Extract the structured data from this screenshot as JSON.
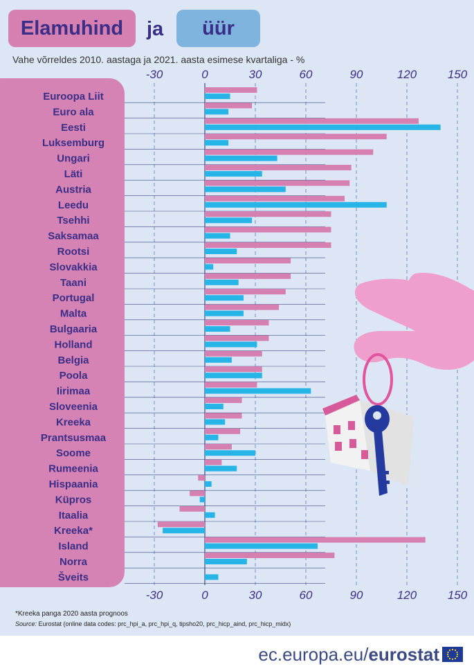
{
  "header": {
    "title_left": "Elamuhind",
    "title_and": "ja",
    "title_right": "üür",
    "subtitle": "Vahe võrreldes 2010. aastaga ja 2021. aasta esimese kvartaliga - %"
  },
  "footer": {
    "footnote": "*Kreeka panga 2020 aasta prognoos",
    "source_label": "Source:",
    "source_text": " Eurostat (online data codes: prc_hpi_a, prc_hpi_q, tipsho20, prc_hicp_aind, prc_hicp_midx)",
    "brand_prefix": "ec.europa.eu/",
    "brand_name": "eurostat"
  },
  "colors": {
    "house_prices": "#d67fb1",
    "rents": "#27b4e6",
    "panel_bg": "#dde6f4",
    "title_text": "#3a2e86",
    "label_panel": "#d582b4"
  },
  "icons": [
    "hand-with-keys-illustration",
    "house-icon",
    "key-icon",
    "eu-flag-icon"
  ],
  "chart_data": {
    "type": "bar",
    "orientation": "horizontal",
    "categories": [
      "Euroopa Liit",
      "Euro ala",
      "Eesti",
      "Luksemburg",
      "Ungari",
      "Läti",
      "Austria",
      "Leedu",
      "Tsehhi",
      "Saksamaa",
      "Rootsi",
      "Slovakkia",
      "Taani",
      "Portugal",
      "Malta",
      "Bulgaaria",
      "Holland",
      "Belgia",
      "Poola",
      "Iirimaa",
      "Sloveenia",
      "Kreeka",
      "Prantsusmaa",
      "Soome",
      "Rumeenia",
      "Hispaania",
      "Küpros",
      "Itaalia",
      "Kreeka*",
      "Island",
      "Norra",
      "Šveits"
    ],
    "series": [
      {
        "color": "#d67fb1",
        "values": [
          31,
          28,
          127,
          108,
          100,
          87,
          86,
          83,
          75,
          75,
          75,
          51,
          51,
          48,
          44,
          38,
          38,
          34,
          34,
          31,
          22,
          22,
          21,
          16,
          10,
          -4,
          -9,
          -15,
          -28,
          131,
          77,
          null
        ]
      },
      {
        "color": "#27b4e6",
        "values": [
          15,
          14,
          140,
          14,
          43,
          34,
          48,
          108,
          28,
          15,
          19,
          5,
          20,
          23,
          23,
          15,
          31,
          16,
          34,
          63,
          11,
          12,
          8,
          30,
          19,
          4,
          -3,
          6,
          -25,
          67,
          25,
          8
        ]
      }
    ],
    "xticks": [
      -30,
      0,
      30,
      60,
      90,
      120,
      150
    ],
    "xlim": [
      -35,
      155
    ],
    "grid": true,
    "legend": "none"
  }
}
